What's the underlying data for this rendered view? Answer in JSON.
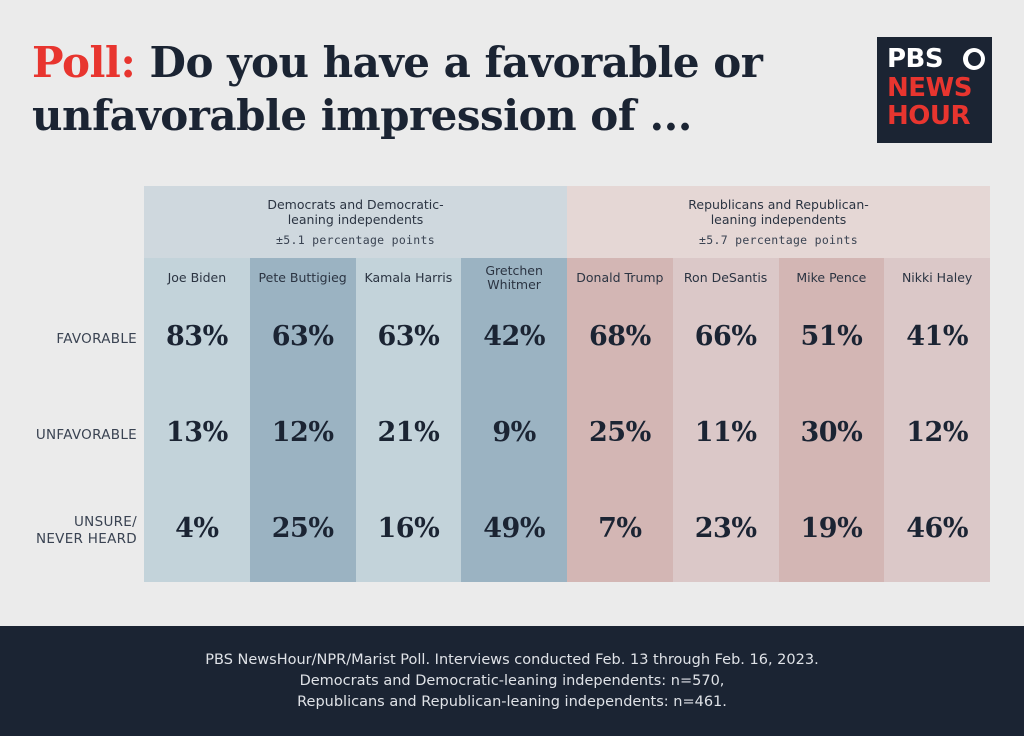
{
  "title": {
    "prefix": "Poll:",
    "line1": "Do you have a favorable or",
    "line2": "unfavorable impression of ..."
  },
  "logo": {
    "line1": "PBS",
    "line2": "NEWS",
    "line3": "HOUR"
  },
  "colors": {
    "dem_band": "#cfd8de",
    "rep_band": "#e5d7d5",
    "dem_light": "#c3d3da",
    "dem_dark": "#9bb3c2",
    "rep_light": "#dbc8c8",
    "rep_dark": "#d3b6b4",
    "title_accent": "#e8352f",
    "navy": "#1b2433"
  },
  "chart_data": {
    "type": "table",
    "title": "Do you have a favorable or unfavorable impression of ...",
    "groups": [
      {
        "name": "Democrats and Democratic-leaning independents",
        "line1": "Democrats and Democratic-",
        "line2": "leaning independents",
        "moe": "±5.1 percentage points"
      },
      {
        "name": "Republicans and Republican-leaning independents",
        "line1": "Republicans and Republican-",
        "line2": "leaning independents",
        "moe": "±5.7 percentage points"
      }
    ],
    "rows": [
      {
        "label1": "FAVORABLE",
        "label2": ""
      },
      {
        "label1": "UNFAVORABLE",
        "label2": ""
      },
      {
        "label1": "UNSURE/",
        "label2": "NEVER HEARD"
      }
    ],
    "columns": [
      {
        "name1": "Joe Biden",
        "name2": "",
        "group": 0,
        "shade": "light",
        "values": [
          "83%",
          "13%",
          "4%"
        ]
      },
      {
        "name1": "Pete Buttigieg",
        "name2": "",
        "group": 0,
        "shade": "dark",
        "values": [
          "63%",
          "12%",
          "25%"
        ]
      },
      {
        "name1": "Kamala Harris",
        "name2": "",
        "group": 0,
        "shade": "light",
        "values": [
          "63%",
          "21%",
          "16%"
        ]
      },
      {
        "name1": "Gretchen",
        "name2": "Whitmer",
        "group": 0,
        "shade": "dark",
        "values": [
          "42%",
          "9%",
          "49%"
        ]
      },
      {
        "name1": "Donald Trump",
        "name2": "",
        "group": 1,
        "shade": "dark",
        "values": [
          "68%",
          "25%",
          "7%"
        ]
      },
      {
        "name1": "Ron DeSantis",
        "name2": "",
        "group": 1,
        "shade": "light",
        "values": [
          "66%",
          "11%",
          "23%"
        ]
      },
      {
        "name1": "Mike Pence",
        "name2": "",
        "group": 1,
        "shade": "dark",
        "values": [
          "51%",
          "30%",
          "19%"
        ]
      },
      {
        "name1": "Nikki Haley",
        "name2": "",
        "group": 1,
        "shade": "light",
        "values": [
          "41%",
          "12%",
          "46%"
        ]
      }
    ]
  },
  "footer": {
    "line1": "PBS NewsHour/NPR/Marist Poll. Interviews conducted Feb. 13 through Feb. 16, 2023.",
    "line2": "Democrats and Democratic-leaning independents: n=570,",
    "line3": "Republicans and Republican-leaning independents: n=461."
  }
}
